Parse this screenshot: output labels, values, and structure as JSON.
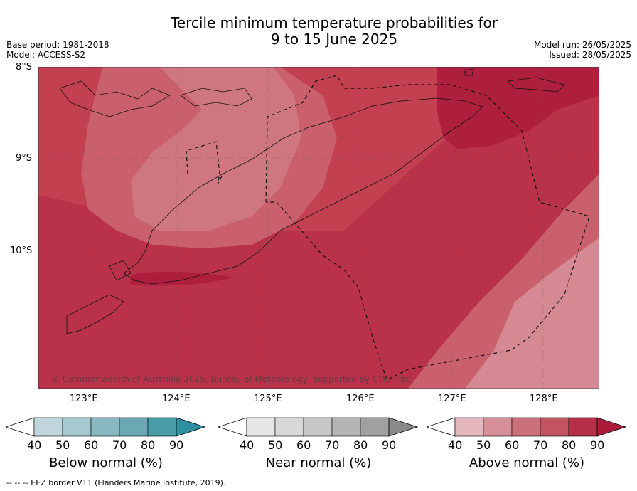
{
  "title": {
    "line1": "Tercile minimum temperature probabilities for",
    "line2": "9 to 15 June 2025"
  },
  "meta": {
    "base_period": "Base period: 1981-2018",
    "model": "Model: ACCESS-S2",
    "model_run": "Model run: 26/05/2025",
    "issued": "Issued: 28/05/2025"
  },
  "map": {
    "lat_labels": [
      "8°S",
      "9°S",
      "10°S"
    ],
    "lon_labels": [
      "123°E",
      "124°E",
      "125°E",
      "126°E",
      "127°E",
      "128°E"
    ],
    "copyright": "© Commonwealth of Australia 2025, Bureau of Meteorology, supported by COSPPac",
    "colors": {
      "sea_a": "#c2404f",
      "sea_b": "#b9324a",
      "dark": "#ae1f3d",
      "mid": "#c9606c",
      "light": "#d58992",
      "light2": "#cf7781"
    }
  },
  "legends": [
    {
      "label": "Below normal (%)",
      "ticks": [
        "40",
        "50",
        "60",
        "70",
        "80",
        "90"
      ],
      "colors": [
        "#ffffff",
        "#bfd6dc",
        "#a6c9cf",
        "#89b8c1",
        "#6aa8b4",
        "#4a9ca9",
        "#2e8fa0"
      ]
    },
    {
      "label": "Near normal (%)",
      "ticks": [
        "40",
        "50",
        "60",
        "70",
        "80",
        "90"
      ],
      "colors": [
        "#ffffff",
        "#e6e6e6",
        "#d8d8d8",
        "#c8c8c8",
        "#b5b5b5",
        "#a0a0a0",
        "#8a8a8a"
      ]
    },
    {
      "label": "Above normal (%)",
      "ticks": [
        "40",
        "50",
        "60",
        "70",
        "80",
        "90"
      ],
      "colors": [
        "#ffffff",
        "#e4b6bd",
        "#d68e97",
        "#cc707b",
        "#c25461",
        "#b7304a",
        "#ad1b3b"
      ]
    }
  ],
  "footnote": "--  --  -- EEZ border V11 (Flanders Marine Institute, 2019)."
}
